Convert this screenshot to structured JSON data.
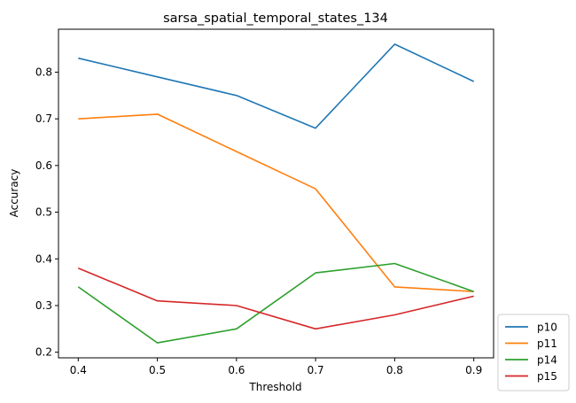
{
  "chart_data": {
    "type": "line",
    "title": "sarsa_spatial_temporal_states_134",
    "xlabel": "Threshold",
    "ylabel": "Accuracy",
    "x": [
      0.4,
      0.5,
      0.6,
      0.7,
      0.8,
      0.9
    ],
    "x_ticks": [
      "0.4",
      "0.5",
      "0.6",
      "0.7",
      "0.8",
      "0.9"
    ],
    "y_ticks": [
      "0.2",
      "0.3",
      "0.4",
      "0.5",
      "0.6",
      "0.7",
      "0.8"
    ],
    "xlim": [
      0.375,
      0.925
    ],
    "ylim": [
      0.188,
      0.892
    ],
    "grid": false,
    "legend_position": "lower-right outside",
    "series": [
      {
        "name": "p10",
        "color": "#1f77b4",
        "values": [
          0.83,
          0.79,
          0.75,
          0.68,
          0.86,
          0.78
        ]
      },
      {
        "name": "p11",
        "color": "#ff7f0e",
        "values": [
          0.7,
          0.71,
          0.63,
          0.55,
          0.34,
          0.33
        ]
      },
      {
        "name": "p14",
        "color": "#2ca02c",
        "values": [
          0.34,
          0.22,
          0.25,
          0.37,
          0.39,
          0.33
        ]
      },
      {
        "name": "p15",
        "color": "#d62728",
        "values": [
          0.38,
          0.31,
          0.3,
          0.25,
          0.28,
          0.32
        ]
      }
    ]
  }
}
